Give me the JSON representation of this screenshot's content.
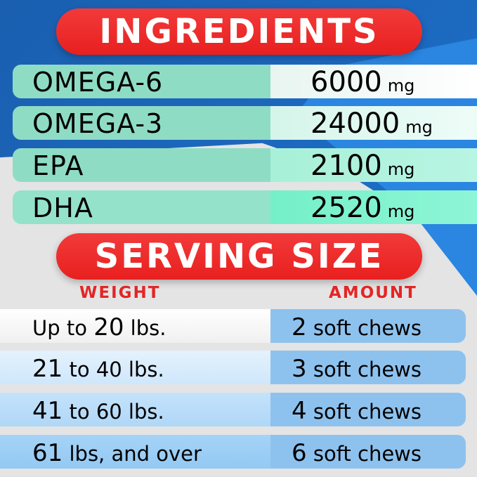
{
  "ingredients": {
    "title": "INGREDIENTS",
    "rows": [
      {
        "name": "OMEGA-6",
        "amount": "6000",
        "unit": "mg"
      },
      {
        "name": "OMEGA-3",
        "amount": "24000",
        "unit": "mg"
      },
      {
        "name": "EPA",
        "amount": "2100",
        "unit": "mg"
      },
      {
        "name": "DHA",
        "amount": "2520",
        "unit": "mg"
      }
    ]
  },
  "serving": {
    "title": "SERVING SIZE",
    "weight_header": "WEIGHT",
    "amount_header": "AMOUNT",
    "rows": [
      {
        "w1": "Up to ",
        "wnum": "20",
        "w2": " lbs.",
        "n": "2",
        "a": " soft chews"
      },
      {
        "w1": "",
        "wnum": "21",
        "w2": " to 40 lbs.",
        "n": "3",
        "a": " soft chews"
      },
      {
        "w1": "",
        "wnum": "41",
        "w2": " to 60 lbs.",
        "n": "4",
        "a": " soft chews"
      },
      {
        "w1": "",
        "wnum": "61",
        "w2": " lbs, and over",
        "n": "6",
        "a": " soft chews"
      }
    ]
  },
  "colors": {
    "red": "#e8201f",
    "blue": "#1a5fb0",
    "mint": "#8fdcc4",
    "sky": "#8ec2ee"
  }
}
